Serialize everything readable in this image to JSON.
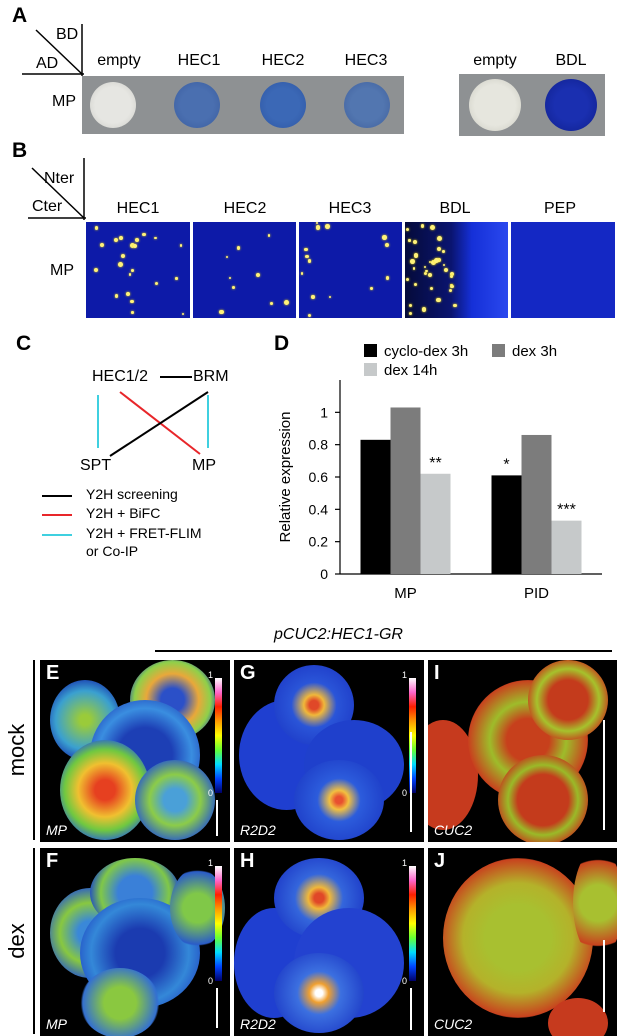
{
  "panel_a": {
    "letter": "A",
    "corner_bd": "BD",
    "corner_ad": "AD",
    "row_label": "MP",
    "columns_left": [
      "empty",
      "HEC1",
      "HEC2",
      "HEC3"
    ],
    "columns_right": [
      "empty",
      "BDL"
    ]
  },
  "panel_b": {
    "letter": "B",
    "corner_nter": "Nter",
    "corner_cter": "Cter",
    "row_label": "MP",
    "columns": [
      "HEC1",
      "HEC2",
      "HEC3",
      "BDL",
      "PEP"
    ]
  },
  "panel_c": {
    "letter": "C",
    "nodes": {
      "hec": "HEC1/2",
      "brm": "BRM",
      "spt": "SPT",
      "mp": "MP"
    },
    "legend": [
      {
        "label": "Y2H screening",
        "color": "#000000"
      },
      {
        "label": "Y2H + BiFC",
        "color": "#e8262a"
      },
      {
        "label": "Y2H + FRET-FLIM",
        "label2": "or Co-IP",
        "color": "#3fd0e0"
      }
    ]
  },
  "panel_d": {
    "letter": "D"
  },
  "chart_data": {
    "type": "bar",
    "categories": [
      "MP",
      "PID"
    ],
    "series": [
      {
        "name": "cyclo-dex 3h",
        "values": [
          0.83,
          0.61
        ],
        "color": "#000000"
      },
      {
        "name": "dex 3h",
        "values": [
          1.03,
          0.86
        ],
        "color": "#7c7c7c"
      },
      {
        "name": "dex 14h",
        "values": [
          0.62,
          0.33
        ],
        "color": "#c6c9ca"
      }
    ],
    "annotations": [
      {
        "category": "MP",
        "series": "dex 14h",
        "text": "**"
      },
      {
        "category": "PID",
        "series": "cyclo-dex 3h",
        "text": "*"
      },
      {
        "category": "PID",
        "series": "dex 14h",
        "text": "***"
      }
    ],
    "ylabel": "Relative expression",
    "ylim": [
      0,
      1.2
    ],
    "yticks": [
      0,
      0.2,
      0.4,
      0.6,
      0.8,
      1
    ],
    "legend_position": "top",
    "grid": false
  },
  "panel_micro": {
    "title": "pCUC2:HEC1-GR",
    "row_labels": [
      "mock",
      "dex"
    ],
    "panels": [
      {
        "letter": "E",
        "label": "MP",
        "colorbar": true
      },
      {
        "letter": "G",
        "label": "R2D2",
        "colorbar": true
      },
      {
        "letter": "I",
        "label": "CUC2",
        "colorbar": false
      },
      {
        "letter": "F",
        "label": "MP",
        "colorbar": true
      },
      {
        "letter": "H",
        "label": "R2D2",
        "colorbar": true
      },
      {
        "letter": "J",
        "label": "CUC2",
        "colorbar": false
      }
    ],
    "colorbar_max": "1",
    "colorbar_min": "0"
  }
}
